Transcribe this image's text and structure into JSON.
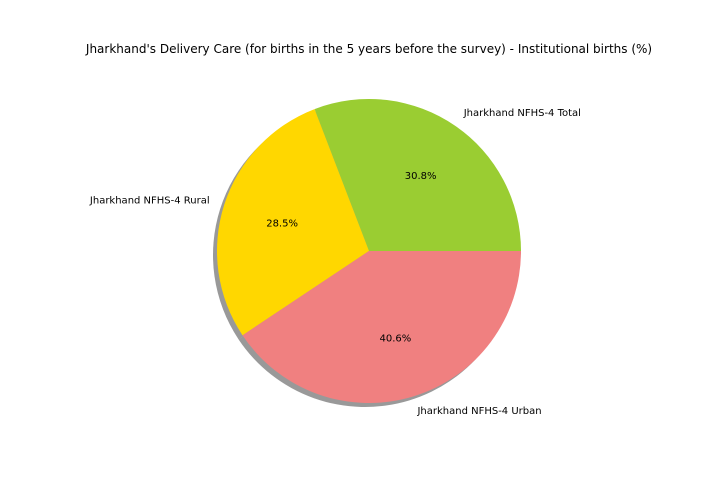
{
  "chart_data": {
    "type": "pie",
    "title": "Jharkhand's Delivery Care (for births in the 5 years before the survey) - Institutional births (%)",
    "categories": [
      "Jharkhand NFHS-4 Total",
      "Jharkhand NFHS-4 Rural",
      "Jharkhand NFHS-4 Urban"
    ],
    "values": [
      30.8,
      28.5,
      40.6
    ],
    "percent_labels": [
      "30.8%",
      "28.5%",
      "40.6%"
    ],
    "colors": [
      "#9acd32",
      "#ffd700",
      "#f08080"
    ],
    "shadow": true,
    "start_angle_deg": 0,
    "direction": "counterclockwise"
  }
}
